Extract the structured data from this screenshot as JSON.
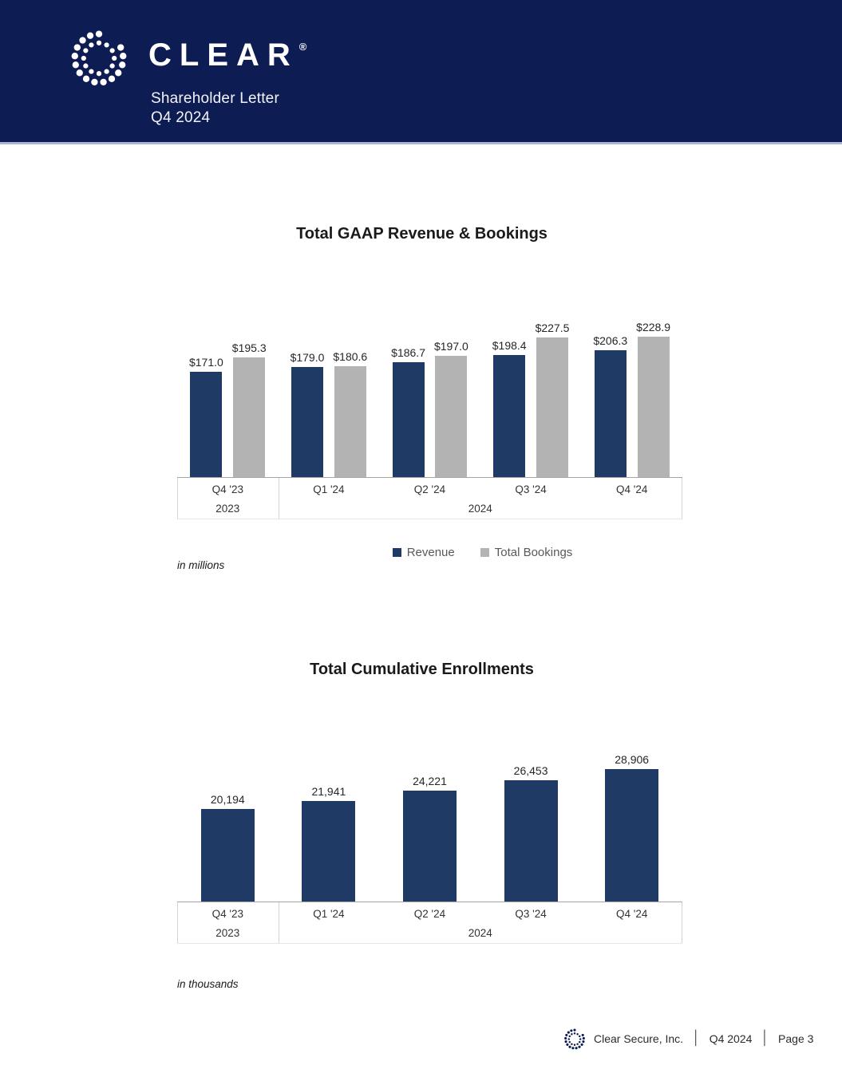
{
  "header": {
    "brand": "CLEAR",
    "registered_mark": "®",
    "subtitle_line1": "Shareholder Letter",
    "subtitle_line2": "Q4 2024"
  },
  "chart_data": [
    {
      "type": "bar",
      "title": "Total GAAP Revenue & Bookings",
      "categories": [
        "Q4 '23",
        "Q1 '24",
        "Q2 '24",
        "Q3 '24",
        "Q4 '24"
      ],
      "year_groups": [
        {
          "label": "2023",
          "span": 1
        },
        {
          "label": "2024",
          "span": 4
        }
      ],
      "series": [
        {
          "name": "Revenue",
          "color": "#1f3a64",
          "values": [
            171.0,
            179.0,
            186.7,
            198.4,
            206.3
          ],
          "labels": [
            "$171.0",
            "$179.0",
            "$186.7",
            "$198.4",
            "$206.3"
          ]
        },
        {
          "name": "Total Bookings",
          "color": "#b3b3b3",
          "values": [
            195.3,
            180.6,
            197.0,
            227.5,
            228.9
          ],
          "labels": [
            "$195.3",
            "$180.6",
            "$197.0",
            "$227.5",
            "$228.9"
          ]
        }
      ],
      "unit_note": "in millions",
      "legend_position": "bottom",
      "value_labels_shown": true,
      "gridlines": false
    },
    {
      "type": "bar",
      "title": "Total Cumulative Enrollments",
      "categories": [
        "Q4 '23",
        "Q1 '24",
        "Q2 '24",
        "Q3 '24",
        "Q4 '24"
      ],
      "year_groups": [
        {
          "label": "2023",
          "span": 1
        },
        {
          "label": "2024",
          "span": 4
        }
      ],
      "series": [
        {
          "color": "#1f3a64",
          "values": [
            20194,
            21941,
            24221,
            26453,
            28906
          ],
          "labels": [
            "20,194",
            "21,941",
            "24,221",
            "26,453",
            "28,906"
          ]
        }
      ],
      "unit_note": "in thousands",
      "legend_position": "none",
      "value_labels_shown": true,
      "gridlines": false
    }
  ],
  "footer": {
    "company": "Clear Secure, Inc.",
    "period": "Q4 2024",
    "page": "Page 3",
    "separator": "│"
  },
  "colors": {
    "banner_navy": "#0d1c52",
    "banner_underline": "#a9b3d3",
    "bar_navy": "#1f3a64",
    "bar_gray": "#b3b3b3",
    "axis_line": "#a5a5a5",
    "tick_line": "#d4d4d4"
  }
}
